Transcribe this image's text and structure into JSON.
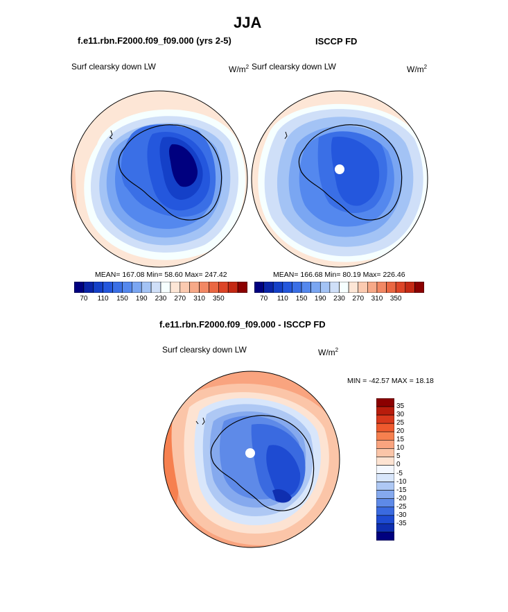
{
  "page": {
    "title": "JJA"
  },
  "panels": [
    {
      "heading": "f.e11.rbn.F2000.f09_f09.000 (yrs 2-5)",
      "variable": "Surf clearsky down LW",
      "units": "W/m",
      "units_exp": "2",
      "stats_text": "MEAN= 167.08  Min=  58.60  Max= 247.42"
    },
    {
      "heading": "ISCCP FD",
      "variable": "Surf clearsky down LW",
      "units": "W/m",
      "units_exp": "2",
      "stats_text": "MEAN= 166.68  Min=  80.19  Max= 226.46"
    }
  ],
  "diff_panel": {
    "heading": "f.e11.rbn.F2000.f09_f09.000 - ISCCP FD",
    "variable": "Surf clearsky down LW",
    "units": "W/m",
    "units_exp": "2",
    "minmax_text": "MIN = -42.57 MAX =  18.18"
  },
  "colorbar_abs": {
    "colors": [
      "#00007f",
      "#0a24a8",
      "#1440c8",
      "#2457dd",
      "#3a6fe6",
      "#5488ee",
      "#7aa6f2",
      "#a3c3f5",
      "#cfdff8",
      "#f6ffff",
      "#fde6d6",
      "#fbcab0",
      "#f7a988",
      "#f28864",
      "#ea6742",
      "#dd4527",
      "#c42914",
      "#8b0000"
    ],
    "labels": [
      "70",
      "110",
      "150",
      "190",
      "230",
      "270",
      "310",
      "350"
    ]
  },
  "colorbar_diff": {
    "colors": [
      "#8b0000",
      "#b81c0c",
      "#d8381c",
      "#ef5a2e",
      "#f6804f",
      "#f9a47f",
      "#fbc5a8",
      "#fde3d2",
      "#f4f8ff",
      "#d8e6fb",
      "#aec8f4",
      "#85a9ee",
      "#5e8ae8",
      "#3a6ae0",
      "#1e4bd2",
      "#0f2fb0",
      "#00007f"
    ],
    "labels": [
      "35",
      "30",
      "25",
      "20",
      "15",
      "10",
      "5",
      "0",
      "-5",
      "-10",
      "-15",
      "-20",
      "-25",
      "-30",
      "-35"
    ]
  }
}
